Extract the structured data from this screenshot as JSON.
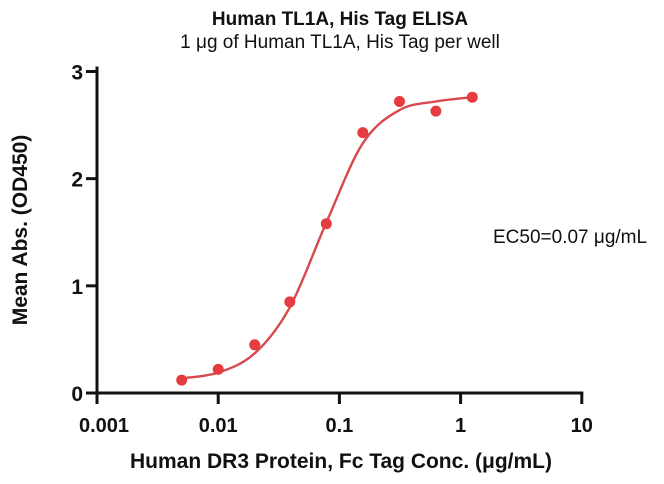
{
  "chart_data": {
    "type": "scatter",
    "title": "Human TL1A, His Tag ELISA",
    "subtitle": "1 μg of Human TL1A, His Tag per well",
    "xlabel": "Human DR3 Protein, Fc Tag Conc. (μg/mL)",
    "ylabel": "Mean Abs. (OD450)",
    "annotation": "EC50=0.07 μg/mL",
    "ec50_ug_ml": 0.07,
    "x_scale": "log",
    "xlim": [
      0.001,
      10
    ],
    "ylim": [
      0,
      3
    ],
    "x_ticks": [
      0.001,
      0.01,
      0.1,
      1,
      10
    ],
    "x_tick_labels": [
      "0.001",
      "0.01",
      "0.1",
      "1",
      "10"
    ],
    "y_ticks": [
      0,
      1,
      2,
      3
    ],
    "y_tick_labels": [
      "0",
      "1",
      "2",
      "3"
    ],
    "grid": false,
    "legend": "none",
    "series": [
      {
        "x": [
          0.005,
          0.01,
          0.02,
          0.039,
          0.078,
          0.156,
          0.313,
          0.625,
          1.25
        ],
        "y": [
          0.12,
          0.22,
          0.45,
          0.85,
          1.58,
          2.43,
          2.72,
          2.63,
          2.76
        ],
        "marker": "circle",
        "marker_color": "#e63b3f"
      }
    ],
    "fit_curve": {
      "model": "4PL-sigmoid",
      "color": "#d6494d",
      "points": [
        [
          0.0048,
          0.135
        ],
        [
          0.01,
          0.19
        ],
        [
          0.02,
          0.37
        ],
        [
          0.039,
          0.8
        ],
        [
          0.078,
          1.59
        ],
        [
          0.156,
          2.33
        ],
        [
          0.313,
          2.64
        ],
        [
          0.625,
          2.72
        ],
        [
          1.26,
          2.76
        ]
      ]
    },
    "axis_color": "#111111",
    "background_color": "#ffffff"
  }
}
